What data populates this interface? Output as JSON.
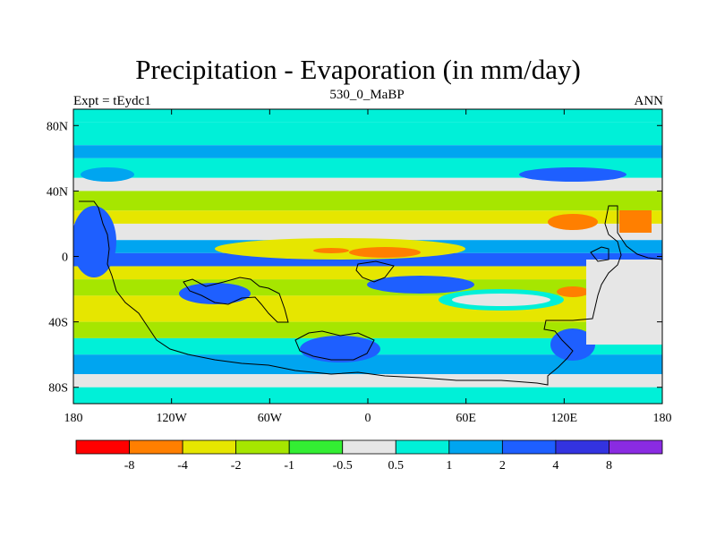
{
  "chart_data": {
    "type": "heatmap",
    "title": "Precipitation - Evaporation (in mm/day)",
    "subtitle": "530_0_MaBP",
    "left_label": "Expt = tEydc1",
    "right_label": "ANN",
    "x_ticks": [
      "180",
      "120W",
      "60W",
      "0",
      "60E",
      "120E",
      "180"
    ],
    "y_ticks": [
      "80N",
      "40N",
      "0",
      "40S",
      "80S"
    ],
    "xlim": [
      -180,
      180
    ],
    "ylim": [
      -90,
      90
    ],
    "colorbar": {
      "labels": [
        "-8",
        "-4",
        "-2",
        "-1",
        "-0.5",
        "0.5",
        "1",
        "2",
        "4",
        "8"
      ],
      "colors": [
        "#ff0000",
        "#ff7f00",
        "#e6e600",
        "#a6e600",
        "#33ee33",
        "#e6e6e6",
        "#00f0d8",
        "#00a5f0",
        "#1e5fff",
        "#3333e0",
        "#8a2be2"
      ]
    },
    "bands": [
      {
        "lat_top": 90,
        "lat_bottom": 82,
        "color": "#00f0d8"
      },
      {
        "lat_top": 82,
        "lat_bottom": 68,
        "color": "#00f0d8"
      },
      {
        "lat_top": 68,
        "lat_bottom": 60,
        "color": "#00a5f0"
      },
      {
        "lat_top": 60,
        "lat_bottom": 48,
        "color": "#00f0d8"
      },
      {
        "lat_top": 48,
        "lat_bottom": 40,
        "color": "#e6e6e6"
      },
      {
        "lat_top": 40,
        "lat_bottom": 28,
        "color": "#a6e600"
      },
      {
        "lat_top": 28,
        "lat_bottom": 20,
        "color": "#e6e600"
      },
      {
        "lat_top": 20,
        "lat_bottom": 10,
        "color": "#e6e6e6"
      },
      {
        "lat_top": 10,
        "lat_bottom": 2,
        "color": "#00a5f0"
      },
      {
        "lat_top": 2,
        "lat_bottom": -6,
        "color": "#1e5fff"
      },
      {
        "lat_top": -6,
        "lat_bottom": -14,
        "color": "#e6e600"
      },
      {
        "lat_top": -14,
        "lat_bottom": -24,
        "color": "#a6e600"
      },
      {
        "lat_top": -24,
        "lat_bottom": -40,
        "color": "#e6e600"
      },
      {
        "lat_top": -40,
        "lat_bottom": -50,
        "color": "#a6e600"
      },
      {
        "lat_top": -50,
        "lat_bottom": -60,
        "color": "#00f0d8"
      },
      {
        "lat_top": -60,
        "lat_bottom": -72,
        "color": "#00a5f0"
      },
      {
        "lat_top": -72,
        "lat_bottom": -80,
        "color": "#e6e6e6"
      },
      {
        "lat_top": -80,
        "lat_bottom": -90,
        "color": "#00f0d8"
      }
    ]
  }
}
